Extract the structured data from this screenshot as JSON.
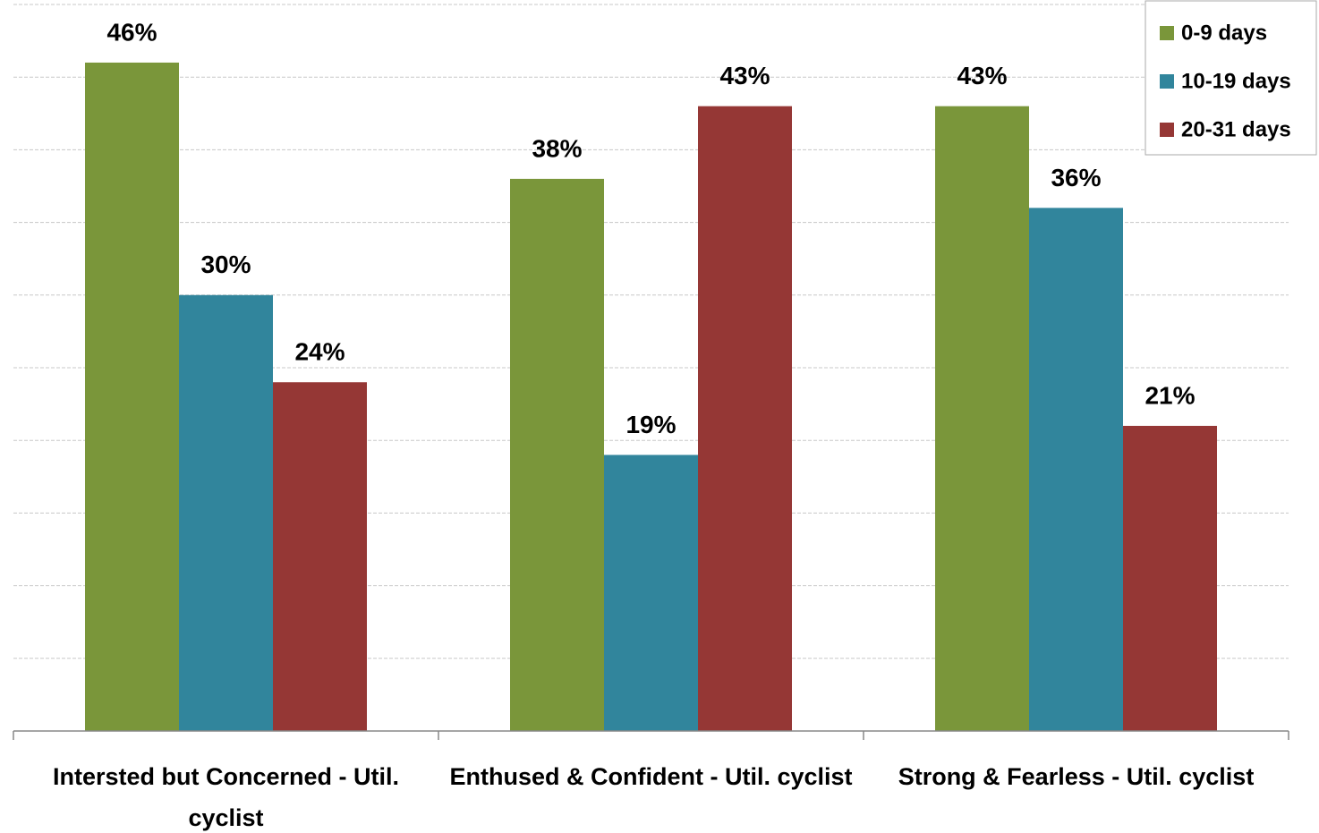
{
  "chart_data": {
    "type": "bar",
    "categories": [
      "Intersted but Concerned - Util. cyclist",
      "Enthused & Confident - Util. cyclist",
      "Strong & Fearless - Util. cyclist"
    ],
    "series": [
      {
        "name": "0-9 days",
        "color": "#7a963a",
        "values": [
          46,
          38,
          43
        ],
        "value_labels": [
          "46%",
          "38%",
          "43%"
        ]
      },
      {
        "name": "10-19 days",
        "color": "#31859c",
        "values": [
          30,
          19,
          36
        ],
        "value_labels": [
          "30%",
          "19%",
          "36%"
        ]
      },
      {
        "name": "20-31 days",
        "color": "#953735",
        "values": [
          24,
          43,
          21
        ],
        "value_labels": [
          "24%",
          "43%",
          "21%"
        ]
      }
    ],
    "ylim": [
      0,
      50
    ],
    "yticks": [
      0,
      5,
      10,
      15,
      20,
      25,
      30,
      35,
      40,
      45,
      50
    ],
    "grid": true,
    "legend": "upper right"
  }
}
